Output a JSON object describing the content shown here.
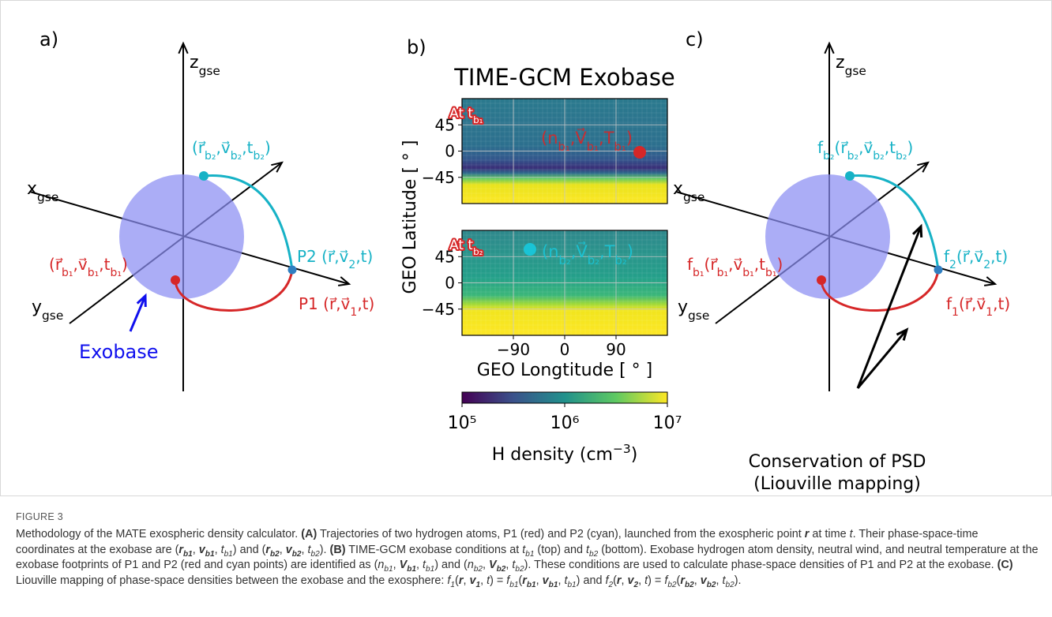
{
  "figure": {
    "panel_a": {
      "label": "a)",
      "z_axis": [
        "z",
        {
          "sub": "gse"
        }
      ],
      "x_axis": [
        "x",
        {
          "sub": "gse"
        }
      ],
      "y_axis": [
        "y",
        {
          "sub": "gse"
        }
      ],
      "cyan_start": [
        "(",
        "r⃗",
        {
          "sub": "b₂"
        },
        ",",
        "v⃗",
        {
          "sub": "b₂"
        },
        ",t",
        {
          "sub": "b₂"
        },
        ")"
      ],
      "cyan_end": [
        "P2 (",
        "r⃗",
        ",",
        "v⃗",
        {
          "sub": "2"
        },
        ",t)"
      ],
      "red_start": [
        "(",
        "r⃗",
        {
          "sub": "b₁"
        },
        ",",
        "v⃗",
        {
          "sub": "b₁"
        },
        ",t",
        {
          "sub": "b₁"
        },
        ")"
      ],
      "red_end": [
        "P1 (",
        "r⃗",
        ",",
        "v⃗",
        {
          "sub": "1"
        },
        ",t)"
      ],
      "exobase": "Exobase"
    },
    "panel_b": {
      "label": "b)",
      "title": "TIME-GCM Exobase",
      "ylabel": "GEO Latitude [ ° ]",
      "xlabel": "GEO Longtitude [ ° ]",
      "maps": [
        {
          "time": [
            "At t",
            {
              "sub": "b₁"
            }
          ],
          "annotation": [
            "(n",
            {
              "sub": "b₁"
            },
            ",",
            "V⃗",
            {
              "sub": "b₁"
            },
            ",T",
            {
              "sub": "b₁"
            },
            ")"
          ],
          "yticks": [
            "45",
            "0",
            "−45"
          ]
        },
        {
          "time": [
            "At t",
            {
              "sub": "b₂"
            }
          ],
          "annotation": [
            "(n",
            {
              "sub": "b₂"
            },
            ",",
            "V⃗",
            {
              "sub": "b₂"
            },
            ",T",
            {
              "sub": "b₂"
            },
            ")"
          ],
          "yticks": [
            "45",
            "0",
            "−45"
          ],
          "xticks": [
            "−90",
            "0",
            "90"
          ]
        }
      ],
      "colorbar_ticks": [
        "10⁵",
        "10⁶",
        "10⁷"
      ],
      "colorbar_label": [
        "H density (cm",
        {
          "sup": "−3"
        },
        ")"
      ]
    },
    "panel_c": {
      "label": "c)",
      "z_axis": [
        "z",
        {
          "sub": "gse"
        }
      ],
      "x_axis": [
        "x",
        {
          "sub": "gse"
        }
      ],
      "y_axis": [
        "y",
        {
          "sub": "gse"
        }
      ],
      "cyan_start": [
        "f",
        {
          "sub": "b₂"
        },
        "(",
        "r⃗",
        {
          "sub": "b₂"
        },
        ",",
        "v⃗",
        {
          "sub": "b₂"
        },
        ",t",
        {
          "sub": "b₂"
        },
        ")"
      ],
      "cyan_end": [
        "f",
        {
          "sub": "2"
        },
        "(",
        "r⃗",
        ",",
        "v⃗",
        {
          "sub": "2"
        },
        ",t)"
      ],
      "red_start": [
        "f",
        {
          "sub": "b₁"
        },
        "(",
        "r⃗",
        {
          "sub": "b₁"
        },
        ",",
        "v⃗",
        {
          "sub": "b₁"
        },
        ",t",
        {
          "sub": "b₁"
        },
        ")"
      ],
      "red_end": [
        "f",
        {
          "sub": "1"
        },
        "(",
        "r⃗",
        ",",
        "v⃗",
        {
          "sub": "1"
        },
        ",t)"
      ],
      "note": [
        "Conservation of PSD",
        "(Liouville mapping)"
      ]
    }
  },
  "caption": {
    "number": "FIGURE 3",
    "text": [
      "Methodology of the MATE exospheric density calculator. ",
      {
        "b": "(A)"
      },
      " Trajectories of two hydrogen atoms, P1 (red) and P2 (cyan), launched from the exospheric point ",
      {
        "bi": "r"
      },
      " at time ",
      {
        "i": "t"
      },
      ". Their phase-space-time coordinates at the exobase are (",
      {
        "bi": "r"
      },
      {
        "bsub": "b1"
      },
      ", ",
      {
        "bi": "v"
      },
      {
        "bsub": "b1"
      },
      ", ",
      {
        "i": "t"
      },
      {
        "sub": "b1"
      },
      ") and (",
      {
        "bi": "r"
      },
      {
        "bsub": "b2"
      },
      ", ",
      {
        "bi": "v"
      },
      {
        "bsub": "b2"
      },
      ", ",
      {
        "i": "t"
      },
      {
        "sub": "b2"
      },
      "). ",
      {
        "b": "(B)"
      },
      " TIME-GCM exobase conditions at ",
      {
        "i": "t"
      },
      {
        "sub": "b1"
      },
      " (top) and ",
      {
        "i": "t"
      },
      {
        "sub": "b2"
      },
      " (bottom). Exobase hydrogen atom density, neutral wind, and neutral temperature at the exobase footprints of P1 and P2 (red and cyan points) are identified as (",
      {
        "i": "n"
      },
      {
        "sub": "b1"
      },
      ", ",
      {
        "bi": "V"
      },
      {
        "bsub": "b1"
      },
      ", ",
      {
        "i": "t"
      },
      {
        "sub": "b1"
      },
      ") and (",
      {
        "i": "n"
      },
      {
        "sub": "b2"
      },
      ", ",
      {
        "bi": "V"
      },
      {
        "bsub": "b2"
      },
      ", ",
      {
        "i": "t"
      },
      {
        "sub": "b2"
      },
      "). These conditions are used to calculate phase-space densities of P1 and P2 at the exobase. ",
      {
        "b": "(C)"
      },
      " Liouville mapping of phase-space densities between the exobase and the exosphere:  ",
      {
        "i": "f"
      },
      {
        "sub": "1"
      },
      "(",
      {
        "bi": "r"
      },
      ", ",
      {
        "bi": "v"
      },
      {
        "bsub": "1"
      },
      ", ",
      {
        "i": "t"
      },
      ") = ",
      {
        "i": "f"
      },
      {
        "sub": "b1"
      },
      "(",
      {
        "bi": "r"
      },
      {
        "bsub": "b1"
      },
      ", ",
      {
        "bi": "v"
      },
      {
        "bsub": "b1"
      },
      ", ",
      {
        "i": "t"
      },
      {
        "sub": "b1"
      },
      ") and ",
      {
        "i": "f"
      },
      {
        "sub": "2"
      },
      "(",
      {
        "bi": "r"
      },
      ", ",
      {
        "bi": "v"
      },
      {
        "bsub": "2"
      },
      ", ",
      {
        "i": "t"
      },
      ") = ",
      {
        "i": "f"
      },
      {
        "sub": "b2"
      },
      "(",
      {
        "bi": "r"
      },
      {
        "bsub": "b2"
      },
      ", ",
      {
        "bi": "v"
      },
      {
        "bsub": "b2"
      },
      ", ",
      {
        "i": "t"
      },
      {
        "sub": "b2"
      },
      ")."
    ]
  }
}
